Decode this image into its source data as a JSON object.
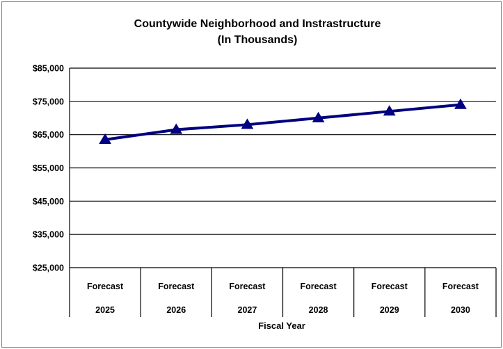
{
  "chart_data": {
    "type": "line",
    "title_lines": [
      "Countywide Neighborhood and Instrastructure",
      "(In Thousands)"
    ],
    "xlabel": "Fiscal Year",
    "ylabel": "",
    "categories": [
      [
        "Forecast",
        "2025"
      ],
      [
        "Forecast",
        "2026"
      ],
      [
        "Forecast",
        "2027"
      ],
      [
        "Forecast",
        "2028"
      ],
      [
        "Forecast",
        "2029"
      ],
      [
        "Forecast",
        "2030"
      ]
    ],
    "series": [
      {
        "values": [
          63500,
          66500,
          68000,
          70000,
          72000,
          74000
        ],
        "color": "#000080",
        "marker": "triangle"
      }
    ],
    "ylim": [
      25000,
      85000
    ],
    "yticks": [
      25000,
      35000,
      45000,
      55000,
      65000,
      75000,
      85000
    ],
    "ytick_labels": [
      "$25,000",
      "$35,000",
      "$45,000",
      "$55,000",
      "$65,000",
      "$75,000",
      "$85,000"
    ],
    "grid": true,
    "legend": "none"
  }
}
